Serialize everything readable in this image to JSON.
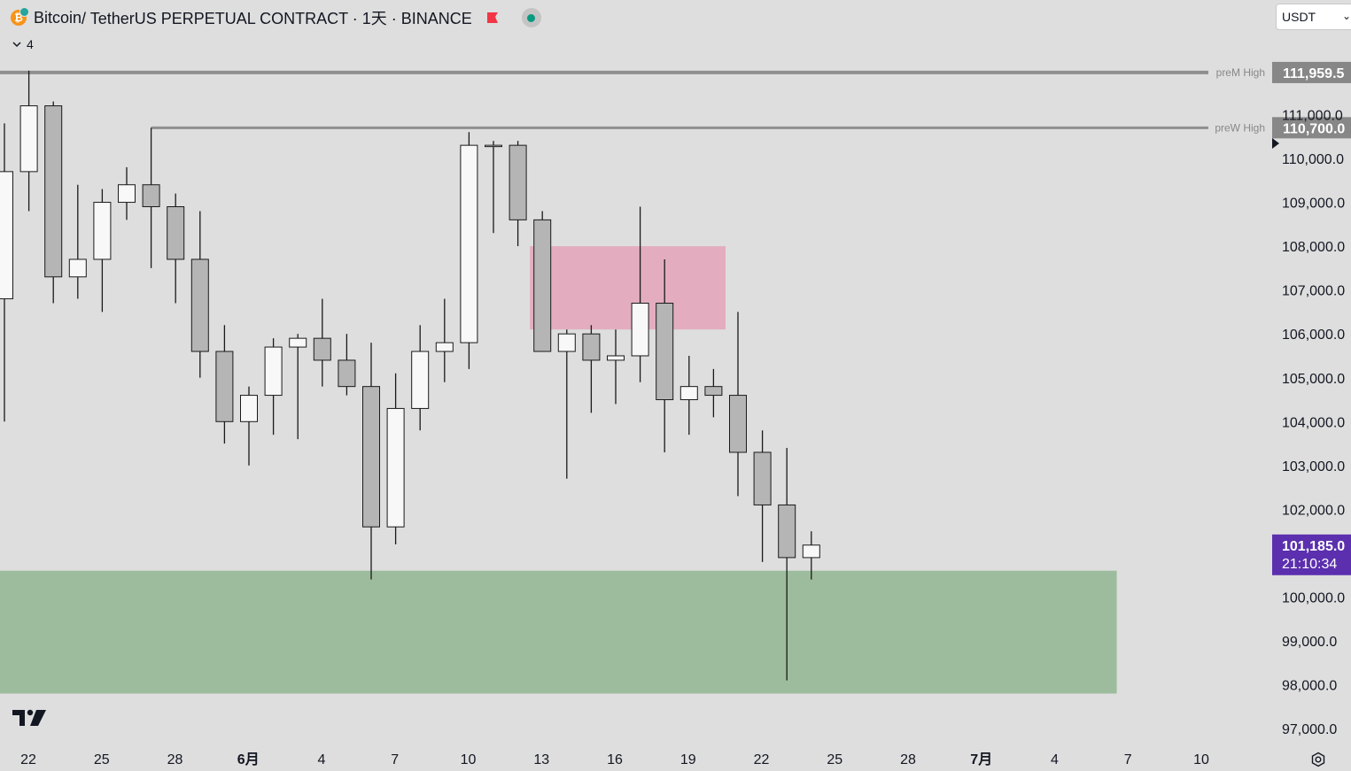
{
  "header": {
    "symbol": "Bitcoin",
    "title_rest": " / TetherUS PERPETUAL CONTRACT · 1天 · BINANCE",
    "icon": "bitcoin-icon",
    "flag_icon": "flag-icon",
    "status_icon": "market-status-dot-icon",
    "layers_count": "4"
  },
  "currency_select": {
    "value": "USDT"
  },
  "colors": {
    "background": "#dedede",
    "up_candle": "#f8f8f8",
    "down_candle": "#b5b5b5",
    "wick": "#1a1a1a",
    "demand_zone": "#9dbc9d",
    "supply_zone": "#e3adbf",
    "level_line": "#8f8f8f",
    "level_label_bg": "#878787",
    "price_label_bg": "#5b2fae"
  },
  "chart_data": {
    "type": "candlestick",
    "symbol": "BTCUSDT.P",
    "timeframe": "1D",
    "exchange": "BINANCE",
    "x_ticks": [
      "22",
      "25",
      "28",
      "6月",
      "4",
      "7",
      "10",
      "13",
      "16",
      "19",
      "22",
      "25",
      "28",
      "7月",
      "4",
      "7",
      "10"
    ],
    "y_ticks": [
      "111,000.0",
      "110,000.0",
      "109,000.0",
      "108,000.0",
      "107,000.0",
      "106,000.0",
      "105,000.0",
      "104,000.0",
      "103,000.0",
      "102,000.0",
      "100,000.0",
      "99,000.0",
      "98,000.0",
      "97,000.0"
    ],
    "ylim": [
      96400,
      112500
    ],
    "candles": [
      {
        "date": "2025-05-21",
        "o": 106800,
        "h": 110800,
        "l": 104000,
        "c": 109700
      },
      {
        "date": "2025-05-22",
        "o": 109700,
        "h": 112000,
        "l": 108800,
        "c": 111200
      },
      {
        "date": "2025-05-23",
        "o": 111200,
        "h": 111300,
        "l": 106700,
        "c": 107300
      },
      {
        "date": "2025-05-24",
        "o": 107300,
        "h": 109400,
        "l": 106800,
        "c": 107700
      },
      {
        "date": "2025-05-25",
        "o": 107700,
        "h": 109300,
        "l": 106500,
        "c": 109000
      },
      {
        "date": "2025-05-26",
        "o": 109000,
        "h": 109800,
        "l": 108600,
        "c": 109400
      },
      {
        "date": "2025-05-27",
        "o": 109400,
        "h": 110700,
        "l": 107500,
        "c": 108900
      },
      {
        "date": "2025-05-28",
        "o": 108900,
        "h": 109200,
        "l": 106700,
        "c": 107700
      },
      {
        "date": "2025-05-29",
        "o": 107700,
        "h": 108800,
        "l": 105000,
        "c": 105600
      },
      {
        "date": "2025-05-30",
        "o": 105600,
        "h": 106200,
        "l": 103500,
        "c": 104000
      },
      {
        "date": "2025-05-31",
        "o": 104000,
        "h": 104800,
        "l": 103000,
        "c": 104600
      },
      {
        "date": "2025-06-01",
        "o": 104600,
        "h": 105900,
        "l": 103700,
        "c": 105700
      },
      {
        "date": "2025-06-02",
        "o": 105700,
        "h": 106000,
        "l": 103600,
        "c": 105900
      },
      {
        "date": "2025-06-03",
        "o": 105900,
        "h": 106800,
        "l": 104800,
        "c": 105400
      },
      {
        "date": "2025-06-04",
        "o": 105400,
        "h": 106000,
        "l": 104600,
        "c": 104800
      },
      {
        "date": "2025-06-05",
        "o": 104800,
        "h": 105800,
        "l": 100400,
        "c": 101600
      },
      {
        "date": "2025-06-06",
        "o": 101600,
        "h": 105100,
        "l": 101200,
        "c": 104300
      },
      {
        "date": "2025-06-07",
        "o": 104300,
        "h": 106200,
        "l": 103800,
        "c": 105600
      },
      {
        "date": "2025-06-08",
        "o": 105600,
        "h": 106800,
        "l": 104900,
        "c": 105800
      },
      {
        "date": "2025-06-09",
        "o": 105800,
        "h": 110600,
        "l": 105200,
        "c": 110300
      },
      {
        "date": "2025-06-10",
        "o": 110300,
        "h": 110400,
        "l": 108300,
        "c": 110300
      },
      {
        "date": "2025-06-11",
        "o": 110300,
        "h": 110400,
        "l": 108000,
        "c": 108600
      },
      {
        "date": "2025-06-12",
        "o": 108600,
        "h": 108800,
        "l": 105600,
        "c": 105600
      },
      {
        "date": "2025-06-13",
        "o": 105600,
        "h": 106100,
        "l": 102700,
        "c": 106000
      },
      {
        "date": "2025-06-14",
        "o": 106000,
        "h": 106200,
        "l": 104200,
        "c": 105400
      },
      {
        "date": "2025-06-15",
        "o": 105400,
        "h": 106100,
        "l": 104400,
        "c": 105500
      },
      {
        "date": "2025-06-16",
        "o": 105500,
        "h": 108900,
        "l": 104900,
        "c": 106700
      },
      {
        "date": "2025-06-17",
        "o": 106700,
        "h": 107700,
        "l": 103300,
        "c": 104500
      },
      {
        "date": "2025-06-18",
        "o": 104500,
        "h": 105500,
        "l": 103700,
        "c": 104800
      },
      {
        "date": "2025-06-19",
        "o": 104800,
        "h": 105200,
        "l": 104100,
        "c": 104600
      },
      {
        "date": "2025-06-20",
        "o": 104600,
        "h": 106500,
        "l": 102300,
        "c": 103300
      },
      {
        "date": "2025-06-21",
        "o": 103300,
        "h": 103800,
        "l": 100800,
        "c": 102100
      },
      {
        "date": "2025-06-22",
        "o": 102100,
        "h": 103400,
        "l": 98100,
        "c": 100900
      },
      {
        "date": "2025-06-23",
        "o": 100900,
        "h": 101500,
        "l": 100400,
        "c": 101185
      }
    ],
    "zones": [
      {
        "name": "supply-zone",
        "from_date": "2025-06-12",
        "to_date": "2025-06-20",
        "top": 108000,
        "bottom": 106100
      },
      {
        "name": "demand-zone",
        "from_date": "2025-05-20",
        "to_date": "2025-07-06",
        "top": 100600,
        "bottom": 97800
      }
    ],
    "levels": [
      {
        "label": "preM High",
        "value": 111959.5,
        "price_text": "111,959.5"
      },
      {
        "label": "preW High",
        "value": 110700.0,
        "price_text": "110,700.0",
        "from_date": "2025-05-27"
      }
    ],
    "last_price": {
      "price_text": "101,185.0",
      "countdown": "21:10:34",
      "value": 101185
    },
    "grid": false
  }
}
